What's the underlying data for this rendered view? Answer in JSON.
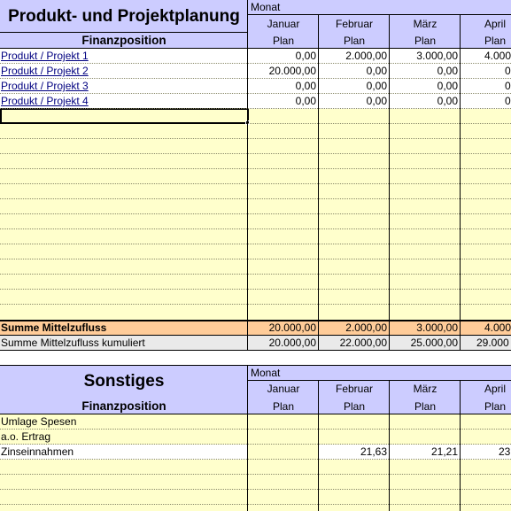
{
  "section1": {
    "title": "Produkt- und Projektplanung",
    "finanzposition": "Finanzposition",
    "monat_label": "Monat",
    "months": [
      "Januar",
      "Februar",
      "März",
      "April"
    ],
    "plan_label": "Plan",
    "rows": [
      {
        "label": "Produkt / Projekt 1",
        "values": [
          "0,00",
          "2.000,00",
          "3.000,00",
          "4.000,"
        ]
      },
      {
        "label": "Produkt / Projekt 2",
        "values": [
          "20.000,00",
          "0,00",
          "0,00",
          "0"
        ]
      },
      {
        "label": "Produkt / Projekt 3",
        "values": [
          "0,00",
          "0,00",
          "0,00",
          "0"
        ]
      },
      {
        "label": "Produkt / Projekt 4",
        "values": [
          "0,00",
          "0,00",
          "0,00",
          "0"
        ]
      }
    ],
    "summe": {
      "label": "Summe Mittelzufluss",
      "values": [
        "20.000,00",
        "2.000,00",
        "3.000,00",
        "4.000"
      ]
    },
    "kumuliert": {
      "label": "Summe Mittelzufluss kumuliert",
      "values": [
        "20.000,00",
        "22.000,00",
        "25.000,00",
        "29.000"
      ]
    }
  },
  "section2": {
    "title": "Sonstiges",
    "finanzposition": "Finanzposition",
    "monat_label": "Monat",
    "months": [
      "Januar",
      "Februar",
      "März",
      "April"
    ],
    "plan_label": "Plan",
    "rows": [
      {
        "label": "Umlage Spesen",
        "values": [
          "",
          "",
          "",
          ""
        ]
      },
      {
        "label": "a.o. Ertrag",
        "values": [
          "",
          "",
          "",
          ""
        ]
      },
      {
        "label": "Zinseinnahmen",
        "values": [
          "",
          "21,63",
          "21,21",
          "23"
        ]
      }
    ]
  },
  "colors": {
    "header": "#ccccff",
    "yellow": "#ffffcc",
    "summe": "#ffcc99",
    "kumuliert": "#eaeaea",
    "link": "#000080"
  }
}
